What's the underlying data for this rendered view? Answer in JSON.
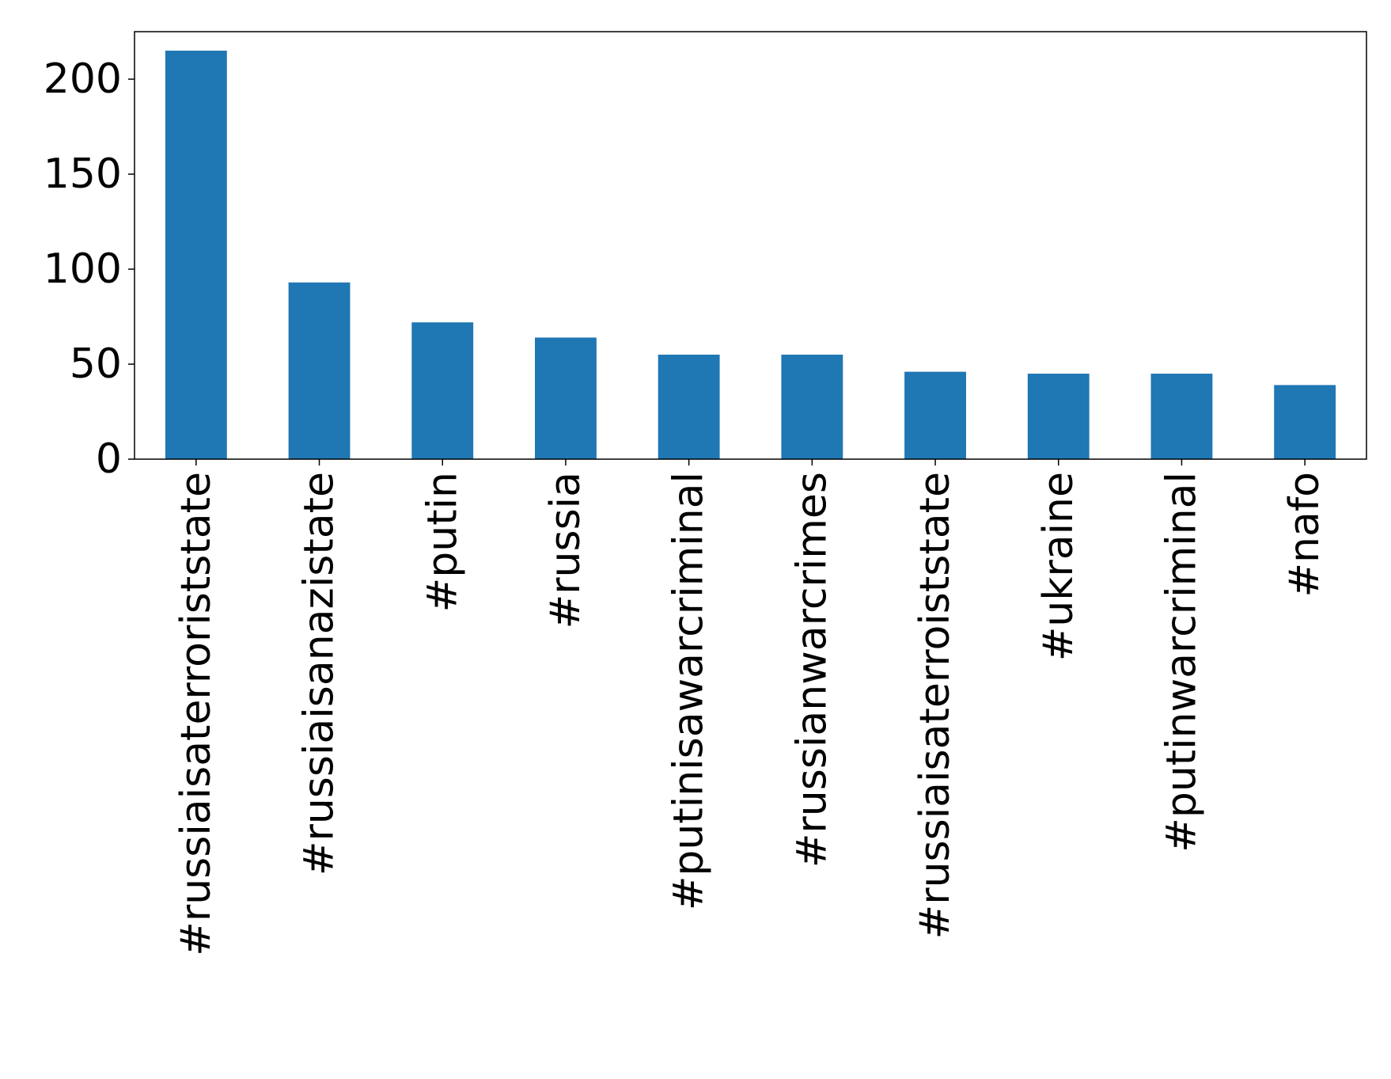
{
  "chart_data": {
    "type": "bar",
    "title": "",
    "xlabel": "",
    "ylabel": "",
    "categories": [
      "#russiaisaterroriststate",
      "#russiaisanazistate",
      "#putin",
      "#russia",
      "#putinisawarcriminal",
      "#russianwarcrimes",
      "#russiaisaterroiststate",
      "#ukraine",
      "#putinwarcriminal",
      "#nafo"
    ],
    "values": [
      215,
      93,
      72,
      64,
      55,
      55,
      46,
      45,
      45,
      39
    ],
    "ylim": [
      0,
      225
    ],
    "yticks": [
      0,
      50,
      100,
      150,
      200
    ],
    "grid": false,
    "legend": "none",
    "bar_color": "#1f77b4"
  }
}
